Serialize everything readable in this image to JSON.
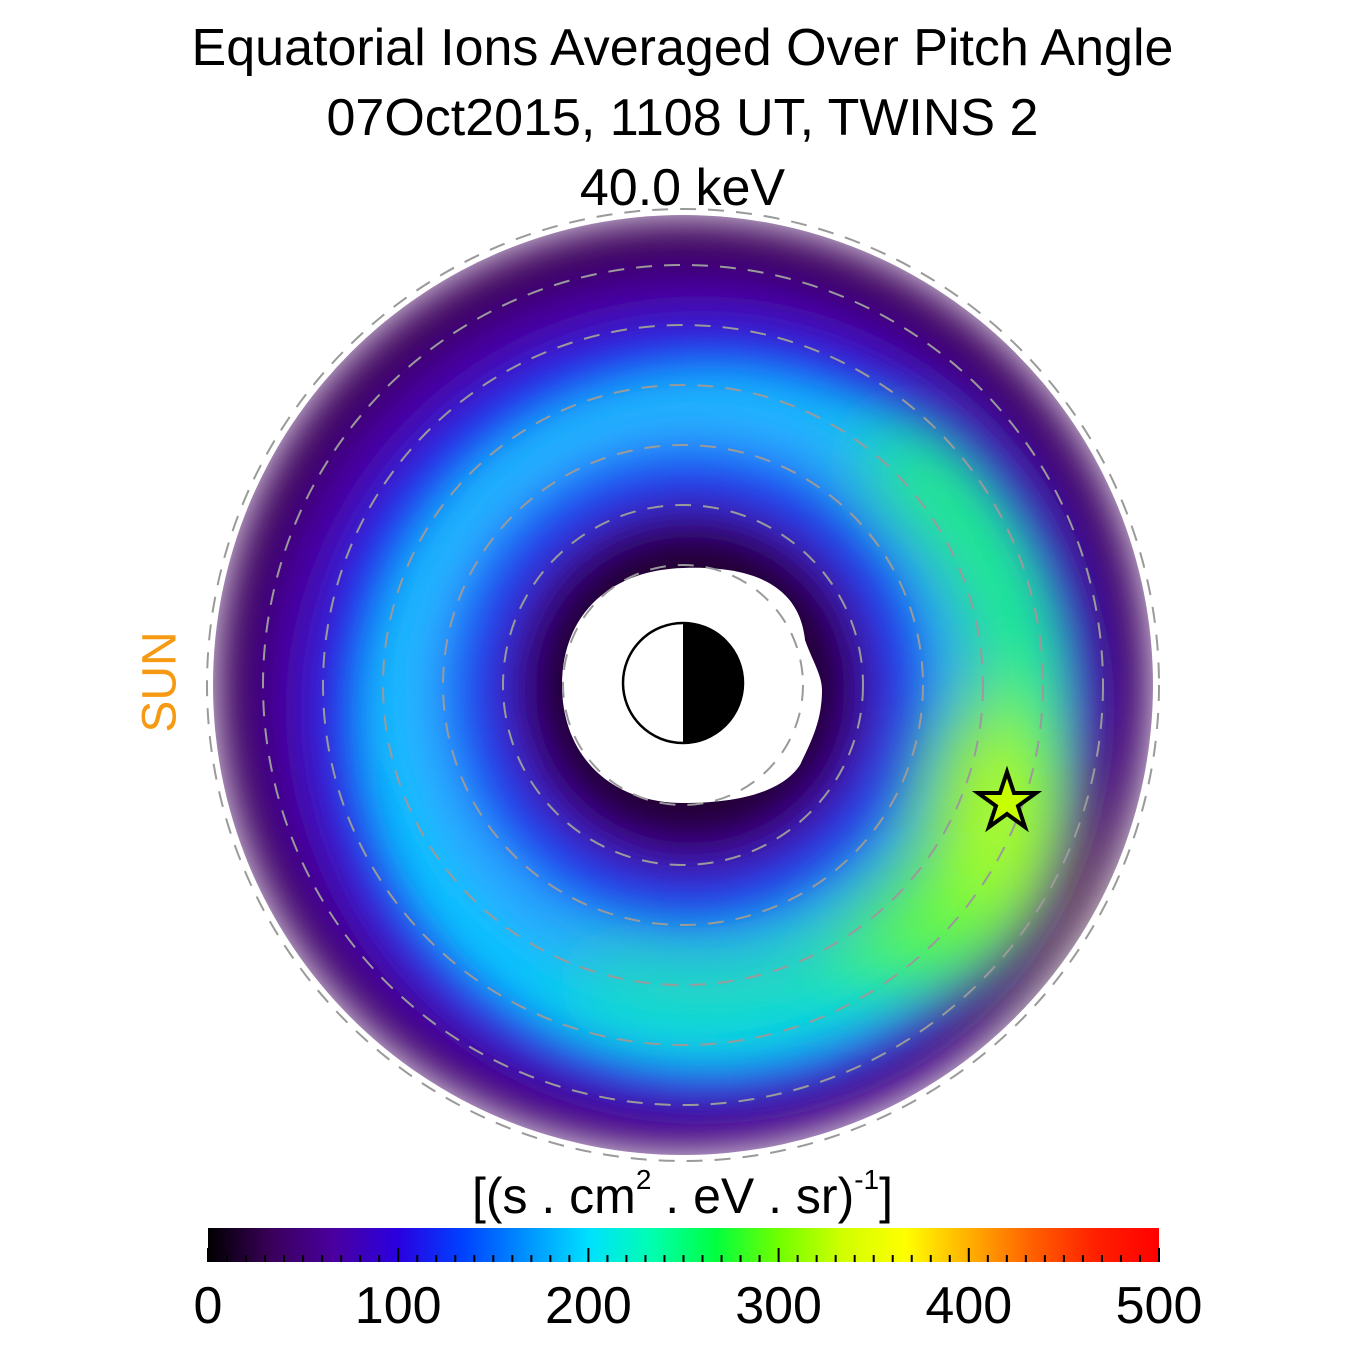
{
  "title": {
    "line1": "Equatorial Ions Averaged Over Pitch Angle",
    "line2": "07Oct2015, 1108 UT,  TWINS 2",
    "line3": "40.0 keV"
  },
  "sun_label": "SUN",
  "colorbar": {
    "units_main": "[(s . cm",
    "units_sup1": "2",
    "units_mid": " . eV . sr)",
    "units_sup2": "-1",
    "units_end": "]",
    "range": [
      0,
      500
    ],
    "ticks": [
      "0",
      "100",
      "200",
      "300",
      "400",
      "500"
    ],
    "colormap": [
      "#000000",
      "#3a005a",
      "#4a00a0",
      "#2a00e0",
      "#0040ff",
      "#0090ff",
      "#00e0ff",
      "#00ffb0",
      "#00ff40",
      "#70ff00",
      "#d0ff00",
      "#ffff00",
      "#ffb000",
      "#ff6000",
      "#ff2000",
      "#ff0000"
    ]
  },
  "chart_data": {
    "type": "heatmap",
    "title": "Equatorial Ions Averaged Over Pitch Angle",
    "subtitle": "07Oct2015, 1108 UT,  TWINS 2",
    "energy": "40.0 keV",
    "colorbar_label": "[(s . cm^2 . eV . sr)^-1]",
    "colorbar_range": [
      0,
      500
    ],
    "colorbar_ticks": [
      0,
      100,
      200,
      300,
      400,
      500
    ],
    "sun_direction": "left",
    "grid": true,
    "description_values": {
      "peak_flux_near_star": 370,
      "inner_ring_flux": 20,
      "outer_edge_flux": 20,
      "ring_core_flux": 200
    }
  },
  "colors": {
    "sun": "#f59a12",
    "dashed_circle": "#9a9a9a",
    "star_fill": "#c8ff00"
  },
  "icons": {
    "earth": "earth-half-shaded-icon",
    "star": "star-icon"
  }
}
